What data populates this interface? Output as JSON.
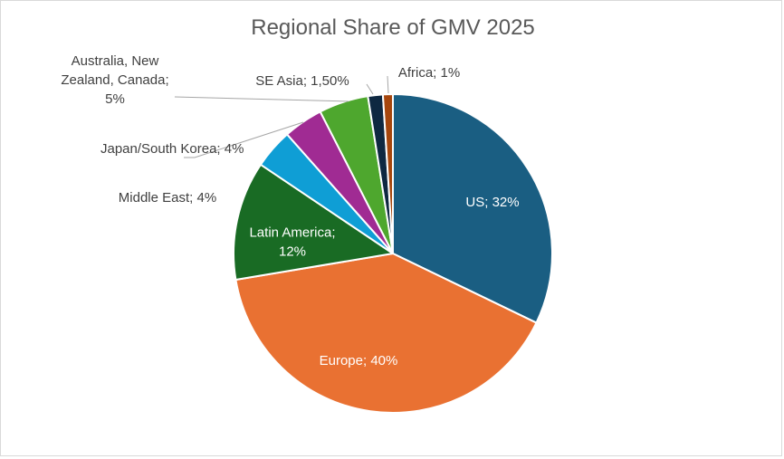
{
  "chart_data": {
    "type": "pie",
    "title": "Regional Share of GMV 2025",
    "slices": [
      {
        "label": "US; 32%",
        "lines": [
          "US; 32%"
        ],
        "value": 32,
        "color": "#1a5e82",
        "label_color": "#ffffff"
      },
      {
        "label": "Europe; 40%",
        "lines": [
          "Europe; 40%"
        ],
        "value": 40,
        "color": "#e97132",
        "label_color": "#ffffff"
      },
      {
        "label": "Latin America; 12%",
        "lines": [
          "Latin America;",
          "12%"
        ],
        "value": 12,
        "color": "#196b24",
        "label_color": "#ffffff"
      },
      {
        "label": "Middle East; 4%",
        "lines": [
          "Middle East; 4%"
        ],
        "value": 4,
        "color": "#0f9ed5",
        "label_color": "#404040"
      },
      {
        "label": "Japan/South Korea; 4%",
        "lines": [
          "Japan/South Korea; 4%"
        ],
        "value": 4,
        "color": "#a02b93",
        "label_color": "#404040"
      },
      {
        "label": "Australia, New Zealand, Canada; 5%",
        "lines": [
          "Australia, New",
          "Zealand, Canada;",
          "5%"
        ],
        "value": 5,
        "color": "#4ea72e",
        "label_color": "#404040"
      },
      {
        "label": "SE Asia; 1,50%",
        "lines": [
          "SE Asia; 1,50%"
        ],
        "value": 1.5,
        "color": "#0e2841",
        "label_color": "#404040"
      },
      {
        "label": "Africa; 1%",
        "lines": [
          "Africa; 1%"
        ],
        "value": 1,
        "color": "#a6460d",
        "label_color": "#404040"
      }
    ]
  }
}
